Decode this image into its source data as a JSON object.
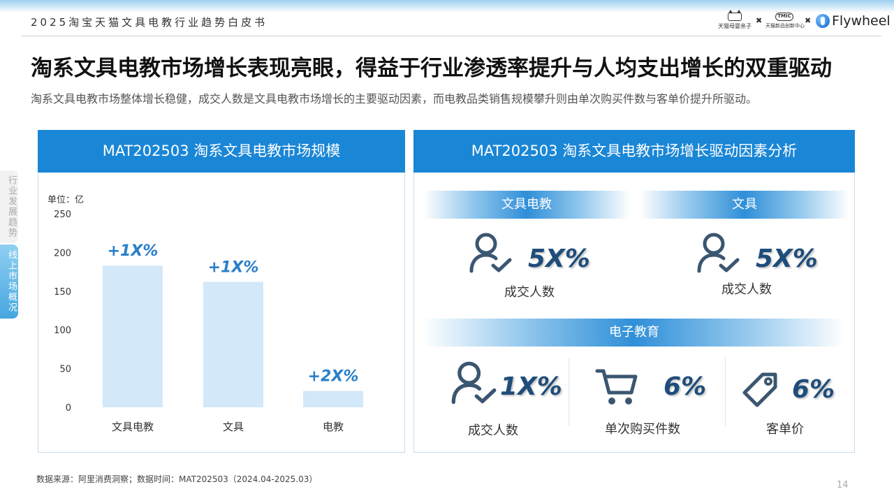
{
  "header": {
    "report_title": "2025淘宝天猫文具电教行业趋势白皮书",
    "logos": {
      "tmall_text": "天猫母婴亲子",
      "tmic_mark": "TMIC",
      "tmic_text": "天猫新品创新中心",
      "flywheel_text": "Flywheel",
      "separator": "✖"
    }
  },
  "title": "淘系文具电教市场增长表现亮眼，得益于行业渗透率提升与人均支出增长的双重驱动",
  "subtitle": "淘系文具电教市场整体增长稳健，成交人数是文具电教市场增长的主要驱动因素，而电教品类销售规模攀升则由单次购买件数与客单价提升所驱动。",
  "side_tabs": [
    "行业发展趋势",
    "线上市场概况"
  ],
  "left_panel": {
    "title": "MAT202503 淘系文具电教市场规模"
  },
  "chart_data": {
    "type": "bar",
    "unit_label": "单位：亿",
    "categories": [
      "文具电教",
      "文具",
      "电教"
    ],
    "values": [
      183,
      162,
      21
    ],
    "data_labels": [
      "+1X%",
      "+1X%",
      "+2X%"
    ],
    "ylim": [
      0,
      250
    ],
    "yticks": [
      0,
      50,
      100,
      150,
      200,
      250
    ],
    "grid": false,
    "bar_color": "#d3e8f8",
    "label_color": "#2a7fc9"
  },
  "right_panel": {
    "title": "MAT202503 淘系文具电教市场增长驱动因素分析",
    "sections": {
      "stationery_edu": {
        "band": "文具电教",
        "metric": {
          "value": "5X%",
          "label": "成交人数",
          "icon": "user-check-icon"
        }
      },
      "stationery": {
        "band": "文具",
        "metric": {
          "value": "5X%",
          "label": "成交人数",
          "icon": "user-check-icon"
        }
      },
      "electronic_edu": {
        "band": "电子教育",
        "metrics": [
          {
            "value": "1X%",
            "label": "成交人数",
            "icon": "user-check-icon"
          },
          {
            "value": "6%",
            "label": "单次购买件数",
            "icon": "shopping-cart-icon"
          },
          {
            "value": "6%",
            "label": "客单价",
            "icon": "price-tag-icon"
          }
        ]
      }
    },
    "icon_color": "#3b5670",
    "value_color": "#1f4d7a"
  },
  "footer": {
    "source": "数据来源：阿里消费洞察；数据时间：MAT202503（2024.04-2025.03）",
    "page": "14"
  }
}
